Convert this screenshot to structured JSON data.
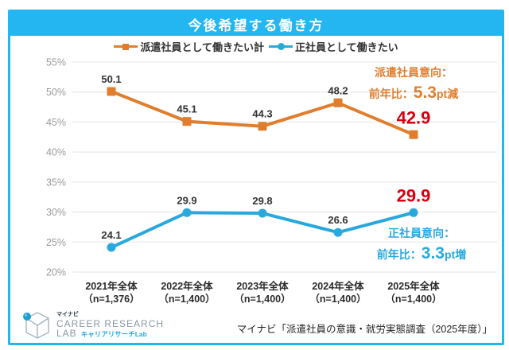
{
  "title": "今後希望する働き方",
  "legend": [
    {
      "label": "派遣社員として働きたい計",
      "marker": "square",
      "color": "#e07e2e"
    },
    {
      "label": "正社員として働きたい",
      "marker": "circle",
      "color": "#29a8dd"
    }
  ],
  "chart_data": {
    "type": "line",
    "categories": [
      "2021年全体",
      "2022年全体",
      "2023年全体",
      "2024年全体",
      "2025年全体"
    ],
    "category_sub": [
      "（n=1,376）",
      "（n=1,400）",
      "（n=1,400）",
      "（n=1,400）",
      "（n=1,400）"
    ],
    "series": [
      {
        "name": "派遣社員として働きたい計",
        "marker": "square",
        "color": "#e07e2e",
        "values": [
          50.1,
          45.1,
          44.3,
          48.2,
          42.9
        ]
      },
      {
        "name": "正社員として働きたい",
        "marker": "circle",
        "color": "#29a8dd",
        "values": [
          24.1,
          29.9,
          29.8,
          26.6,
          29.9
        ]
      }
    ],
    "ylim": [
      20,
      55
    ],
    "ytick_step": 5,
    "ytick_suffix": "%",
    "grid": true,
    "legend_position": "top",
    "last_point_emphasis_color": "#d7000f"
  },
  "annotations": [
    {
      "line1": "派遣社員意向：",
      "prefix": "前年比：",
      "big": "5.3",
      "suffix": "pt減",
      "color": "#e07e2e"
    },
    {
      "line1": "正社員意向：",
      "prefix": "前年比：",
      "big": "3.3",
      "suffix": "pt増",
      "color": "#29a8dd"
    }
  ],
  "footer": {
    "logo": {
      "brand_small": "マイナビ",
      "line1": "CAREER RESEARCH",
      "line2": "LAB",
      "line2_sub": "キャリアリサーチLab"
    },
    "source": "マイナビ「派遣社員の意識・就労実態調査（2025年度）」"
  },
  "colors": {
    "accent_cyan": "#24b6f0",
    "orange": "#e07e2e",
    "blue": "#29a8dd",
    "red": "#d7000f",
    "grid": "#e3e3e3",
    "axis_text": "#9b9b9b",
    "label_text": "#333333"
  }
}
